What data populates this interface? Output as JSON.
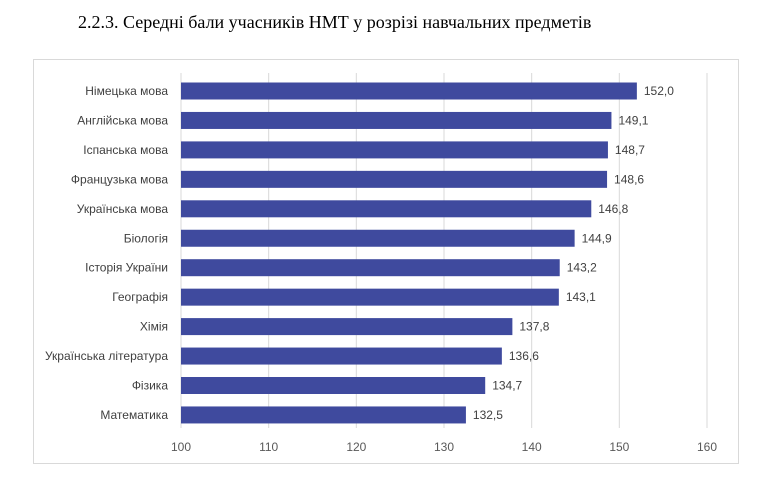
{
  "heading": "2.2.3. Середні бали учасників НМТ у розрізі навчальних предметів",
  "chart_data": {
    "type": "bar",
    "orientation": "horizontal",
    "categories": [
      "Німецька мова",
      "Англійська мова",
      "Іспанська мова",
      "Французька мова",
      "Українська мова",
      "Біологія",
      "Історія України",
      "Географія",
      "Хімія",
      "Українська література",
      "Фізика",
      "Математика"
    ],
    "values": [
      152.0,
      149.1,
      148.7,
      148.6,
      146.8,
      144.9,
      143.2,
      143.1,
      137.8,
      136.6,
      134.7,
      132.5
    ],
    "value_labels": [
      "152,0",
      "149,1",
      "148,7",
      "148,6",
      "146,8",
      "144,9",
      "143,2",
      "143,1",
      "137,8",
      "136,6",
      "134,7",
      "132,5"
    ],
    "xlim": [
      100,
      160
    ],
    "xticks": [
      100,
      110,
      120,
      130,
      140,
      150,
      160
    ],
    "xtick_labels": [
      "100",
      "110",
      "120",
      "130",
      "140",
      "150",
      "160"
    ],
    "grid": true,
    "legend": "none",
    "bar_color": "#3f4a9e",
    "grid_color": "#d9d9d9"
  }
}
